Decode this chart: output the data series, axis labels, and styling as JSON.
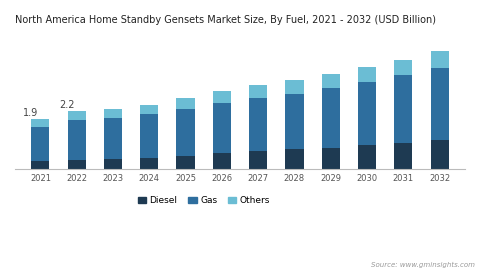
{
  "title": "North America Home Standby Gensets Market Size, By Fuel, 2021 - 2032 (USD Billion)",
  "years": [
    2021,
    2022,
    2023,
    2024,
    2025,
    2026,
    2027,
    2028,
    2029,
    2030,
    2031,
    2032
  ],
  "diesel": [
    0.3,
    0.35,
    0.4,
    0.43,
    0.52,
    0.62,
    0.68,
    0.75,
    0.82,
    0.9,
    1.0,
    1.1
  ],
  "gas": [
    1.3,
    1.5,
    1.55,
    1.65,
    1.75,
    1.88,
    2.0,
    2.1,
    2.25,
    2.4,
    2.55,
    2.72
  ],
  "others": [
    0.3,
    0.35,
    0.32,
    0.35,
    0.4,
    0.45,
    0.5,
    0.5,
    0.52,
    0.55,
    0.58,
    0.63
  ],
  "labels_2021_2022": [
    "1.9",
    "2.2"
  ],
  "diesel_color": "#1e3a52",
  "gas_color": "#2e6e9e",
  "others_color": "#6bbdd4",
  "bg_color": "#ffffff",
  "source_text": "Source: www.gminsights.com",
  "bar_width": 0.5,
  "ylim": [
    0,
    5.2
  ],
  "title_fontsize": 7.0,
  "tick_fontsize": 6.0,
  "legend_fontsize": 6.5,
  "annotation_fontsize": 7.0
}
